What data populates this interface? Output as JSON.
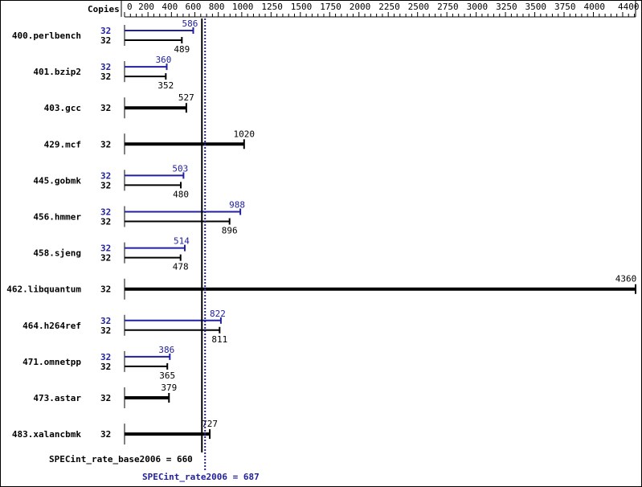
{
  "chart_data": {
    "type": "bar",
    "orientation": "horizontal",
    "axis_label": "Copies",
    "xlim": [
      0,
      4400
    ],
    "tick_labels": [
      "0",
      "200",
      "400",
      "600",
      "800",
      "1000",
      "1250",
      "1500",
      "1750",
      "2000",
      "2250",
      "2500",
      "2750",
      "3000",
      "3250",
      "3500",
      "3750",
      "4000",
      "4400"
    ],
    "tick_values": [
      0,
      200,
      400,
      600,
      800,
      1000,
      1250,
      1500,
      1750,
      2000,
      2250,
      2500,
      2750,
      3000,
      3250,
      3500,
      3750,
      4000,
      4360
    ],
    "benchmarks": [
      {
        "name": "400.perlbench",
        "peak_copies": "32",
        "base_copies": "32",
        "peak": 586,
        "base": 489
      },
      {
        "name": "401.bzip2",
        "peak_copies": "32",
        "base_copies": "32",
        "peak": 360,
        "base": 352
      },
      {
        "name": "403.gcc",
        "base_copies": "32",
        "base": 527
      },
      {
        "name": "429.mcf",
        "base_copies": "32",
        "base": 1020
      },
      {
        "name": "445.gobmk",
        "peak_copies": "32",
        "base_copies": "32",
        "peak": 503,
        "base": 480
      },
      {
        "name": "456.hmmer",
        "peak_copies": "32",
        "base_copies": "32",
        "peak": 988,
        "base": 896
      },
      {
        "name": "458.sjeng",
        "peak_copies": "32",
        "base_copies": "32",
        "peak": 514,
        "base": 478
      },
      {
        "name": "462.libquantum",
        "base_copies": "32",
        "base": 4360
      },
      {
        "name": "464.h264ref",
        "peak_copies": "32",
        "base_copies": "32",
        "peak": 822,
        "base": 811
      },
      {
        "name": "471.omnetpp",
        "peak_copies": "32",
        "base_copies": "32",
        "peak": 386,
        "base": 365
      },
      {
        "name": "473.astar",
        "base_copies": "32",
        "base": 379
      },
      {
        "name": "483.xalancbmk",
        "base_copies": "32",
        "base": 727
      }
    ],
    "base_mean": {
      "label": "SPECint_rate_base2006 = 660",
      "value": 660
    },
    "peak_mean": {
      "label": "SPECint_rate2006 = 687",
      "value": 687
    },
    "colors": {
      "base": "#000000",
      "peak": "#2020a0"
    }
  }
}
